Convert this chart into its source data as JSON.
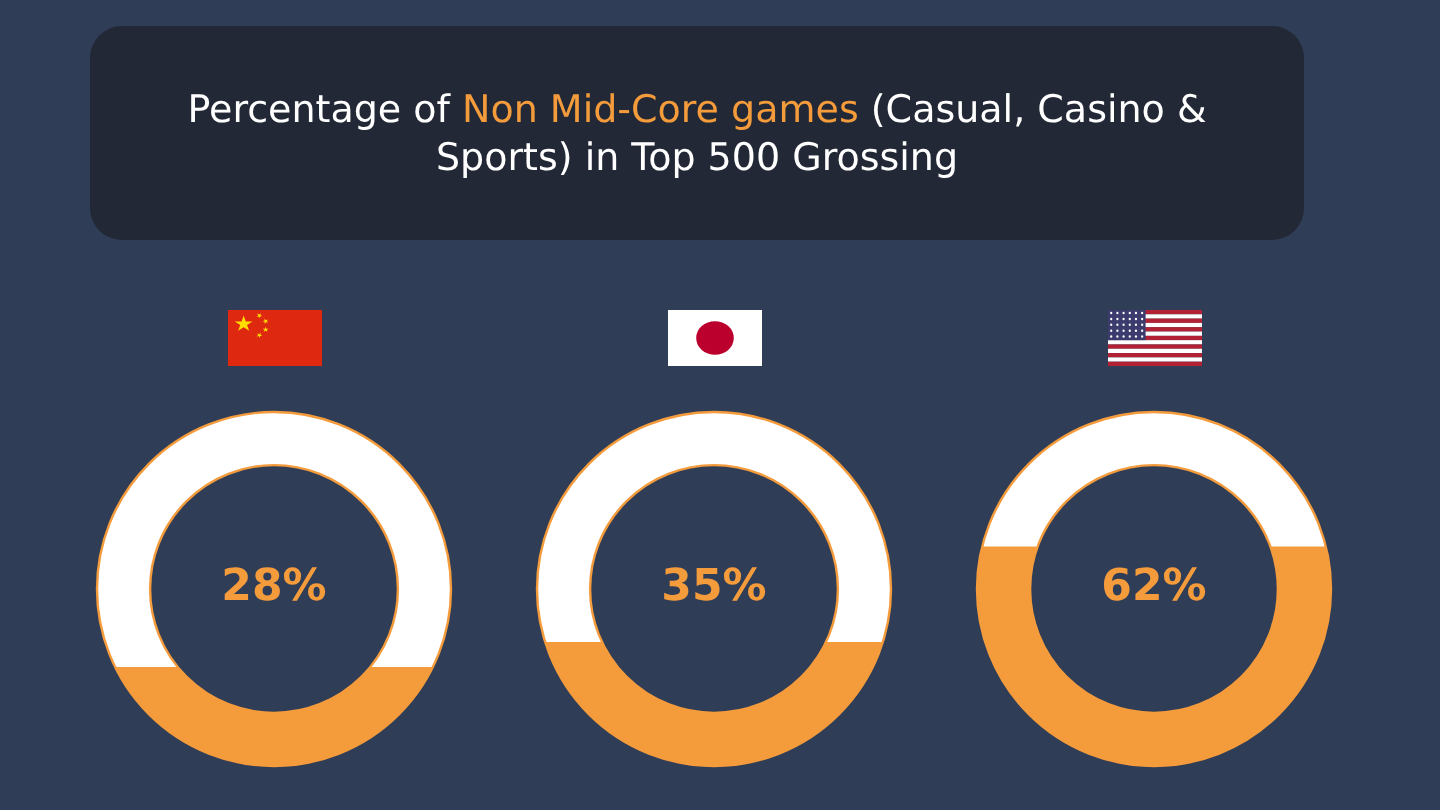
{
  "chart_data": {
    "type": "other",
    "title": "Percentage of Non Mid-Core games (Casual, Casino & Sports) in Top 500 Grossing",
    "categories": [
      null,
      null,
      null
    ],
    "values": [
      28,
      35,
      62
    ],
    "value_labels": [
      "28%",
      "35%",
      "62%"
    ],
    "color": "#f49b3c"
  }
}
